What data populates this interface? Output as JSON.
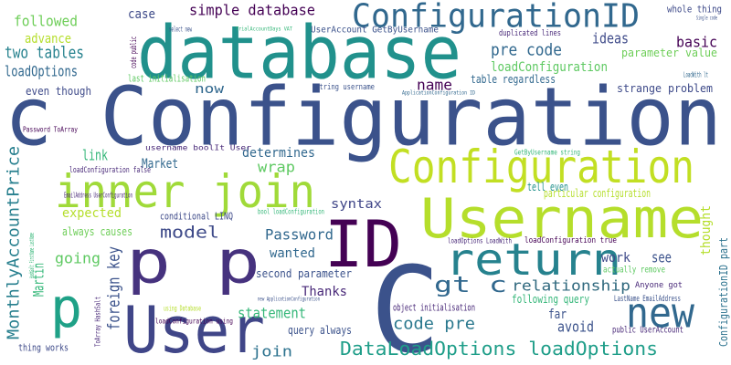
{
  "words": [
    "c Configuration",
    "database",
    "ConfigurationID",
    "Configuration",
    "Username",
    "inner join",
    "ID",
    "return",
    "p p",
    "C",
    "User",
    "new",
    "p",
    "gt c",
    "DataLoadOptions loadOptions",
    "code pre",
    "relationship",
    "MonthlyAccountPrice",
    "Martin",
    "foreign key",
    "model",
    "Password",
    "wanted",
    "Thanks",
    "statement",
    "second parameter",
    "query always",
    "join",
    "going",
    "expected",
    "always causes",
    "conditional LINQ",
    "syntax",
    "wrap",
    "determines",
    "Market",
    "link",
    "now",
    "name",
    "pre code",
    "ideas",
    "basic",
    "loadConfiguration",
    "parameter value",
    "table regardless",
    "strange problem",
    "whole thing",
    "case",
    "simple database",
    "followed",
    "advance",
    "two tables",
    "loadOptions",
    "even though",
    "last initialisation",
    "UserAccount GetByUsername",
    "duplicated lines",
    "string username",
    "tell even",
    "particular configuration",
    "ConfigurationID part",
    "thought",
    "work",
    "see",
    "actually remove",
    "Anyone got",
    "LastName EmailAddress",
    "public UserAccount",
    "far",
    "avoid",
    "following query",
    "object initialisation",
    "loadConfiguration true",
    "loadOptions LoadWith",
    "GetByUsername string",
    "username boolIt User",
    "loadConfiguration false",
    "bool loadConfiguration",
    "Password ToArray",
    "using Database",
    "loadConfiguration using",
    "new ApplicationConfiguration",
    "thing works",
    "ToArray HashSalt",
    "EmailAddress UserConfiguration",
    "code public",
    "select new",
    "TrialAccountDays VAT",
    "Single code",
    "LoadWith lt",
    "ApplicationConfiguration ID",
    "HashSalt FirstName LastName"
  ]
}
